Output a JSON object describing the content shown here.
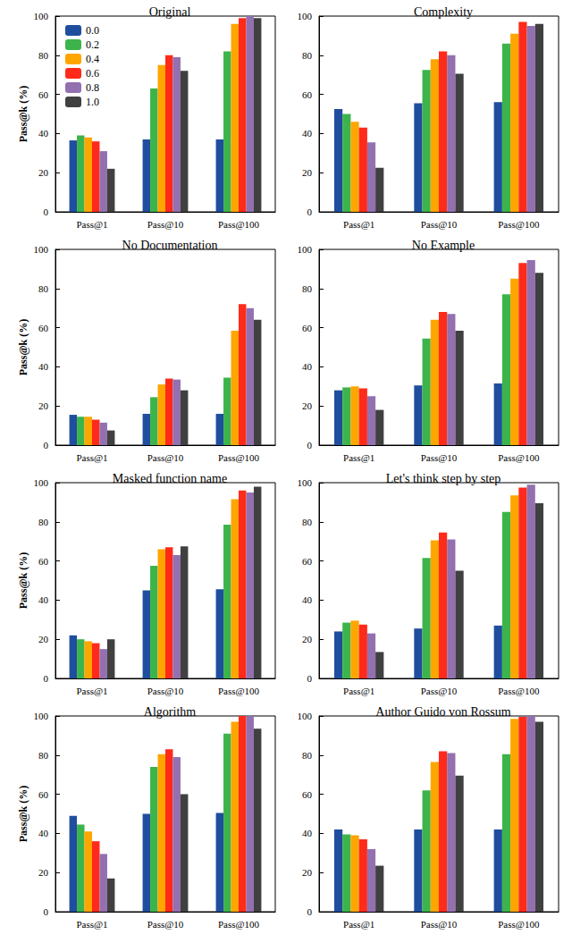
{
  "chart_data": [
    {
      "type": "bar",
      "title": "Original",
      "ylabel": "Pass@k (%)",
      "categories": [
        "Pass@1",
        "Pass@10",
        "Pass@100"
      ],
      "ylim": [
        0,
        100
      ],
      "yticks": [
        0,
        20,
        40,
        60,
        80,
        100
      ],
      "legend": "upper left",
      "series": [
        {
          "name": "0.0",
          "color": "#1f4e9e",
          "values": [
            36.5,
            37,
            37
          ]
        },
        {
          "name": "0.2",
          "color": "#3cb44b",
          "values": [
            39,
            63,
            82
          ]
        },
        {
          "name": "0.4",
          "color": "#ffa500",
          "values": [
            38,
            75,
            96
          ]
        },
        {
          "name": "0.6",
          "color": "#ff2a1a",
          "values": [
            36,
            80,
            99
          ]
        },
        {
          "name": "0.8",
          "color": "#9370b0",
          "values": [
            31,
            79,
            100
          ]
        },
        {
          "name": "1.0",
          "color": "#404040",
          "values": [
            22,
            72,
            99
          ]
        }
      ]
    },
    {
      "type": "bar",
      "title": "Complexity",
      "categories": [
        "Pass@1",
        "Pass@10",
        "Pass@100"
      ],
      "ylim": [
        0,
        100
      ],
      "yticks": [
        0,
        20,
        40,
        60,
        80,
        100
      ],
      "series": [
        {
          "color": "#1f4e9e",
          "values": [
            52.5,
            55.5,
            56
          ]
        },
        {
          "color": "#3cb44b",
          "values": [
            50,
            72.5,
            86
          ]
        },
        {
          "color": "#ffa500",
          "values": [
            46,
            78,
            91
          ]
        },
        {
          "color": "#ff2a1a",
          "values": [
            43,
            82,
            97
          ]
        },
        {
          "color": "#9370b0",
          "values": [
            35.5,
            80,
            95
          ]
        },
        {
          "color": "#404040",
          "values": [
            22.5,
            70.5,
            96
          ]
        }
      ]
    },
    {
      "type": "bar",
      "title": "No Documentation",
      "ylabel": "Pass@k (%)",
      "categories": [
        "Pass@1",
        "Pass@10",
        "Pass@100"
      ],
      "ylim": [
        0,
        100
      ],
      "yticks": [
        0,
        20,
        40,
        60,
        80,
        100
      ],
      "series": [
        {
          "color": "#1f4e9e",
          "values": [
            15.5,
            16,
            16
          ]
        },
        {
          "color": "#3cb44b",
          "values": [
            14.5,
            24.5,
            34.5
          ]
        },
        {
          "color": "#ffa500",
          "values": [
            14.5,
            31,
            58.5
          ]
        },
        {
          "color": "#ff2a1a",
          "values": [
            13,
            34,
            72
          ]
        },
        {
          "color": "#9370b0",
          "values": [
            11.5,
            33.5,
            70
          ]
        },
        {
          "color": "#404040",
          "values": [
            7.5,
            28,
            64
          ]
        }
      ]
    },
    {
      "type": "bar",
      "title": "No Example",
      "categories": [
        "Pass@1",
        "Pass@10",
        "Pass@100"
      ],
      "ylim": [
        0,
        100
      ],
      "yticks": [
        0,
        20,
        40,
        60,
        80,
        100
      ],
      "series": [
        {
          "color": "#1f4e9e",
          "values": [
            28,
            30.5,
            31.5
          ]
        },
        {
          "color": "#3cb44b",
          "values": [
            29.5,
            54.5,
            77
          ]
        },
        {
          "color": "#ffa500",
          "values": [
            30,
            64,
            85
          ]
        },
        {
          "color": "#ff2a1a",
          "values": [
            29,
            68,
            93
          ]
        },
        {
          "color": "#9370b0",
          "values": [
            25,
            67,
            94.5
          ]
        },
        {
          "color": "#404040",
          "values": [
            18,
            58.5,
            88
          ]
        }
      ]
    },
    {
      "type": "bar",
      "title": "Masked function name",
      "ylabel": "Pass@k (%)",
      "categories": [
        "Pass@1",
        "Pass@10",
        "Pass@100"
      ],
      "ylim": [
        0,
        100
      ],
      "yticks": [
        0,
        20,
        40,
        60,
        80,
        100
      ],
      "series": [
        {
          "color": "#1f4e9e",
          "values": [
            22,
            45,
            45.5
          ]
        },
        {
          "color": "#3cb44b",
          "values": [
            20,
            57.5,
            78.5
          ]
        },
        {
          "color": "#ffa500",
          "values": [
            19,
            66,
            91.5
          ]
        },
        {
          "color": "#ff2a1a",
          "values": [
            18,
            67,
            96
          ]
        },
        {
          "color": "#9370b0",
          "values": [
            15,
            63,
            95
          ]
        },
        {
          "color": "#404040",
          "values": [
            20,
            67.5,
            98
          ]
        }
      ]
    },
    {
      "type": "bar",
      "title": "Let's think step by step",
      "categories": [
        "Pass@1",
        "Pass@10",
        "Pass@100"
      ],
      "ylim": [
        0,
        100
      ],
      "yticks": [
        0,
        20,
        40,
        60,
        80,
        100
      ],
      "series": [
        {
          "color": "#1f4e9e",
          "values": [
            24,
            25.5,
            27
          ]
        },
        {
          "color": "#3cb44b",
          "values": [
            28.5,
            61.5,
            85
          ]
        },
        {
          "color": "#ffa500",
          "values": [
            29.5,
            70.5,
            93.5
          ]
        },
        {
          "color": "#ff2a1a",
          "values": [
            27.5,
            74.5,
            97.5
          ]
        },
        {
          "color": "#9370b0",
          "values": [
            23,
            71,
            99
          ]
        },
        {
          "color": "#404040",
          "values": [
            13.5,
            55,
            89.5
          ]
        }
      ]
    },
    {
      "type": "bar",
      "title": "Algorithm",
      "ylabel": "Pass@k (%)",
      "categories": [
        "Pass@1",
        "Pass@10",
        "Pass@100"
      ],
      "ylim": [
        0,
        100
      ],
      "yticks": [
        0,
        20,
        40,
        60,
        80,
        100
      ],
      "series": [
        {
          "color": "#1f4e9e",
          "values": [
            49,
            50,
            50.5
          ]
        },
        {
          "color": "#3cb44b",
          "values": [
            44.5,
            74,
            91
          ]
        },
        {
          "color": "#ffa500",
          "values": [
            41,
            80.5,
            97
          ]
        },
        {
          "color": "#ff2a1a",
          "values": [
            36,
            83,
            100
          ]
        },
        {
          "color": "#9370b0",
          "values": [
            29.5,
            79,
            100
          ]
        },
        {
          "color": "#404040",
          "values": [
            17,
            60,
            93.5
          ]
        }
      ]
    },
    {
      "type": "bar",
      "title": "Author Guido von Rossum",
      "categories": [
        "Pass@1",
        "Pass@10",
        "Pass@100"
      ],
      "ylim": [
        0,
        100
      ],
      "yticks": [
        0,
        20,
        40,
        60,
        80,
        100
      ],
      "series": [
        {
          "color": "#1f4e9e",
          "values": [
            42,
            42,
            42
          ]
        },
        {
          "color": "#3cb44b",
          "values": [
            39.5,
            62,
            80.5
          ]
        },
        {
          "color": "#ffa500",
          "values": [
            39,
            76.5,
            98.5
          ]
        },
        {
          "color": "#ff2a1a",
          "values": [
            37,
            82,
            99.5
          ]
        },
        {
          "color": "#9370b0",
          "values": [
            32,
            81,
            100
          ]
        },
        {
          "color": "#404040",
          "values": [
            23.5,
            69.5,
            97
          ]
        }
      ]
    }
  ]
}
